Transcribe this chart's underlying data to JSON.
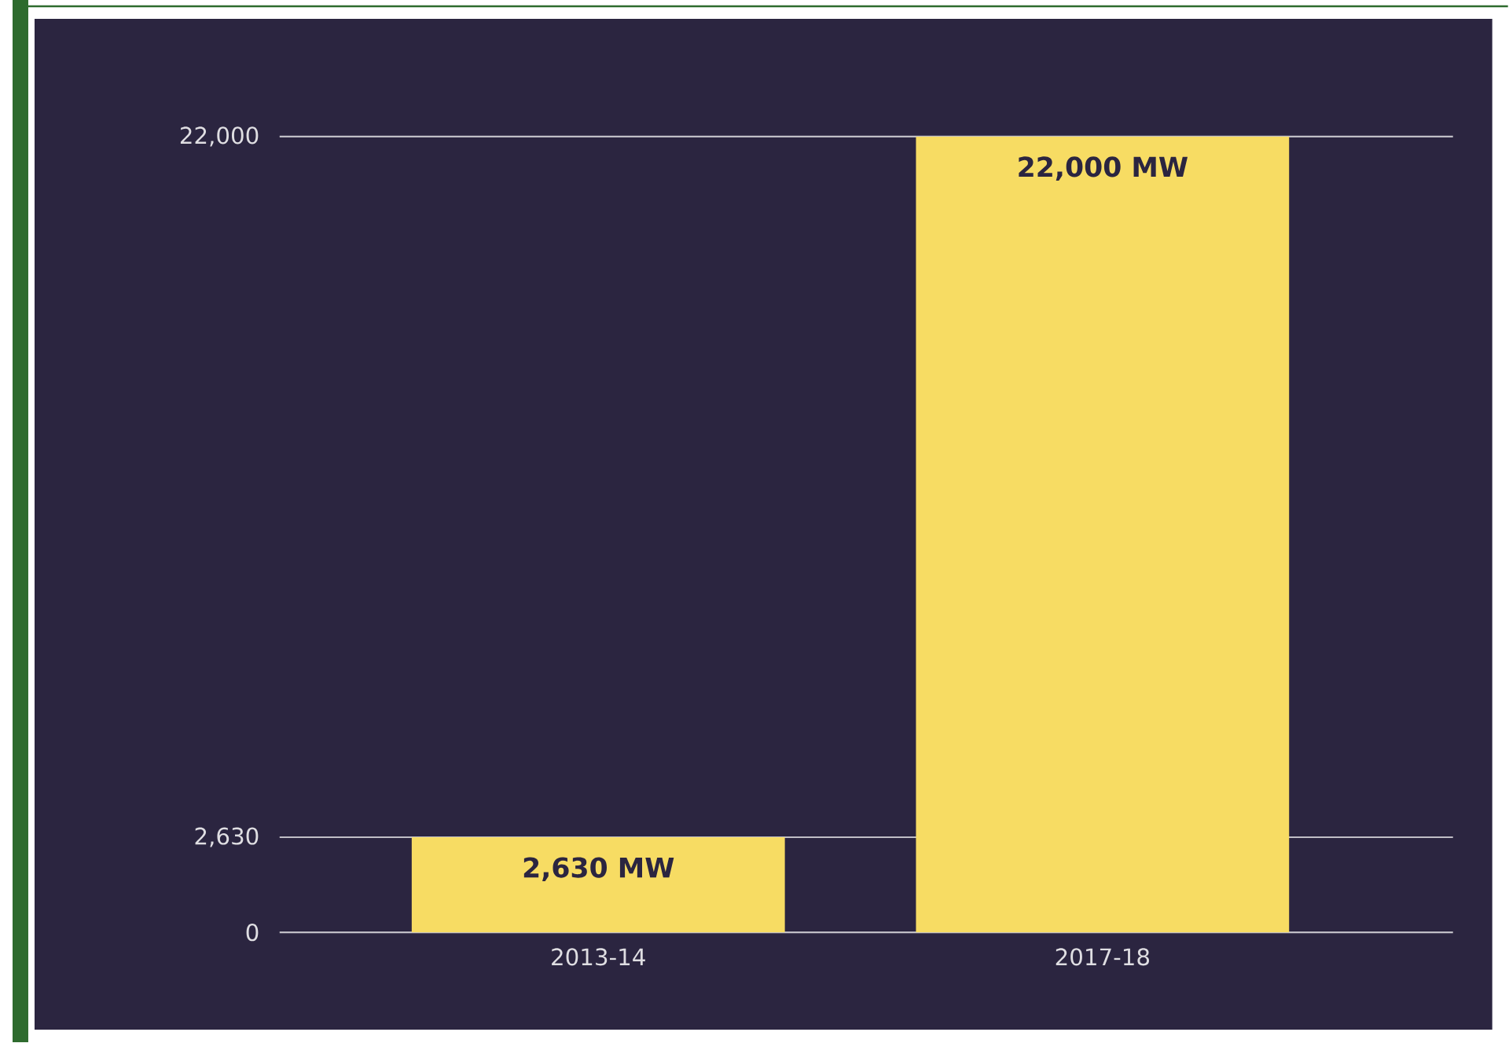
{
  "chart_data": {
    "type": "bar",
    "categories": [
      "2013-14",
      "2017-18"
    ],
    "values": [
      2630,
      22000
    ],
    "value_labels": [
      "2,630 MW",
      "22,000 MW"
    ],
    "color": "#f7dc63",
    "ylim": [
      0,
      22000
    ],
    "yticks": [
      {
        "value": 0,
        "label": "0"
      },
      {
        "value": 2630,
        "label": "2,630"
      },
      {
        "value": 22000,
        "label": "22,000"
      }
    ],
    "grid": "y"
  }
}
